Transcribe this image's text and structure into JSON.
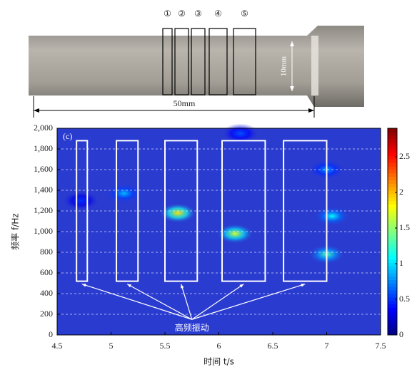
{
  "photo": {
    "labels": [
      "①",
      "②",
      "③",
      "④",
      "⑤"
    ],
    "width_label": "10mm",
    "length_label": "50mm"
  },
  "chart_data": {
    "type": "spectrogram",
    "panel_label": "(c)",
    "x_label": "时间 t/s",
    "y_label": "频率 f/Hz",
    "annotation": "高频振动",
    "xlim": [
      4.5,
      7.5
    ],
    "xticks": [
      4.5,
      5,
      5.5,
      6,
      6.5,
      7,
      7.5
    ],
    "ylim": [
      0,
      2000
    ],
    "yticks": [
      0,
      200,
      400,
      600,
      800,
      {
        "value": 1000,
        "label": "1,000"
      },
      {
        "value": 1200,
        "label": "1,200"
      },
      {
        "value": 1400,
        "label": "1,400"
      },
      {
        "value": 1600,
        "label": "1,600"
      },
      {
        "value": 1800,
        "label": "1,800"
      },
      {
        "value": 2000,
        "label": "2,000"
      }
    ],
    "grid": true,
    "colorbar": {
      "lim": [
        0,
        2.9
      ],
      "ticks": [
        0,
        0.5,
        1,
        1.5,
        2,
        2.5
      ]
    },
    "spots": [
      {
        "x": 5.12,
        "y": 1370,
        "value": 0.9
      },
      {
        "x": 5.62,
        "y": 1180,
        "value": 1.9
      },
      {
        "x": 6.15,
        "y": 980,
        "value": 1.7
      },
      {
        "x": 7.0,
        "y": 780,
        "value": 1.3
      },
      {
        "x": 7.05,
        "y": 1150,
        "value": 1.1
      },
      {
        "x": 7.0,
        "y": 1600,
        "value": 0.8
      },
      {
        "x": 4.72,
        "y": 1300,
        "value": 0.5
      },
      {
        "x": 6.2,
        "y": 1950,
        "value": 0.6
      }
    ],
    "windows": [
      [
        4.68,
        4.78
      ],
      [
        5.05,
        5.25
      ],
      [
        5.5,
        5.8
      ],
      [
        6.03,
        6.43
      ],
      [
        6.6,
        7.0
      ]
    ],
    "window_ylim": [
      520,
      1880
    ]
  }
}
